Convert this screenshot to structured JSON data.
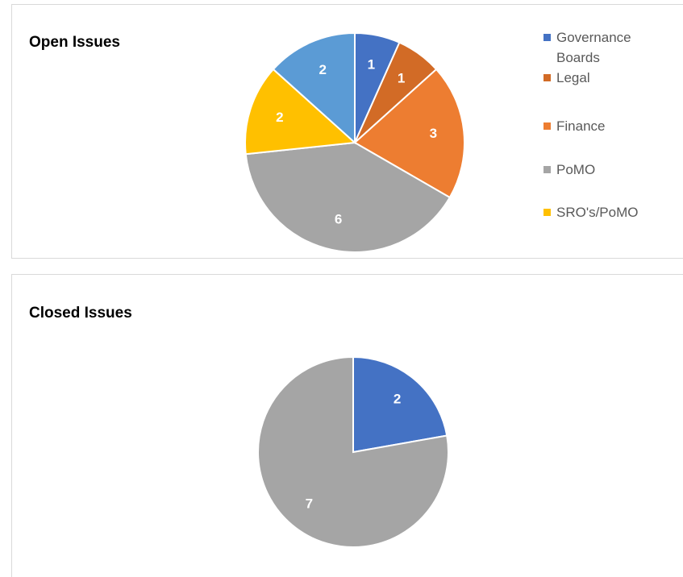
{
  "chart_data": [
    {
      "type": "pie",
      "title": "Open Issues",
      "categories": [
        "Governance Boards",
        "Legal",
        "Finance",
        "PoMO",
        "SRO's/PoMO",
        null
      ],
      "values": [
        1,
        1,
        3,
        6,
        2,
        2
      ],
      "colors": [
        "#4472c4",
        "#d26b26",
        "#ed7d31",
        "#a5a5a5",
        "#ffc000",
        "#5b9bd5"
      ],
      "legend": "right"
    },
    {
      "type": "pie",
      "title": "Closed Issues",
      "categories": [
        null,
        null
      ],
      "values": [
        2,
        7
      ],
      "colors": [
        "#4472c4",
        "#a5a5a5"
      ]
    }
  ]
}
